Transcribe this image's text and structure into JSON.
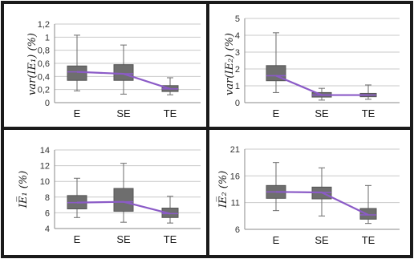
{
  "chart_data": [
    {
      "type": "box",
      "ylabel": "var(IE₁) (%)",
      "categories": [
        "E",
        "SE",
        "TE"
      ],
      "ylim": [
        0,
        1.2
      ],
      "yticks": [
        "0",
        "0,2",
        "0,4",
        "0,6",
        "0,8",
        "1",
        "1,2"
      ],
      "ytick_values": [
        0,
        0.2,
        0.4,
        0.6,
        0.8,
        1.0,
        1.2
      ],
      "boxes": [
        {
          "min": 0.18,
          "q1": 0.34,
          "median": 0.47,
          "q3": 0.56,
          "max": 1.03
        },
        {
          "min": 0.13,
          "q1": 0.34,
          "median": 0.44,
          "q3": 0.58,
          "max": 0.88
        },
        {
          "min": 0.12,
          "q1": 0.17,
          "median": 0.21,
          "q3": 0.26,
          "max": 0.38
        }
      ],
      "grid": true
    },
    {
      "type": "box",
      "ylabel": "var(IE₂) (%)",
      "categories": [
        "E",
        "SE",
        "TE"
      ],
      "ylim": [
        0,
        5
      ],
      "yticks": [
        "0",
        "1",
        "2",
        "3",
        "4",
        "5"
      ],
      "ytick_values": [
        0,
        1,
        2,
        3,
        4,
        5
      ],
      "boxes": [
        {
          "min": 0.6,
          "q1": 1.3,
          "median": 1.6,
          "q3": 2.2,
          "max": 4.15
        },
        {
          "min": 0.15,
          "q1": 0.33,
          "median": 0.45,
          "q3": 0.6,
          "max": 0.85
        },
        {
          "min": 0.2,
          "q1": 0.35,
          "median": 0.45,
          "q3": 0.55,
          "max": 1.05
        }
      ],
      "grid": true
    },
    {
      "type": "box",
      "ylabel": "IE̅₁ (%)",
      "categories": [
        "E",
        "SE",
        "TE"
      ],
      "ylim": [
        4,
        14
      ],
      "yticks": [
        "4",
        "6",
        "8",
        "10",
        "12",
        "14"
      ],
      "ytick_values": [
        4,
        6,
        8,
        10,
        12,
        14
      ],
      "boxes": [
        {
          "min": 5.4,
          "q1": 6.5,
          "median": 7.3,
          "q3": 8.2,
          "max": 10.4
        },
        {
          "min": 4.8,
          "q1": 6.2,
          "median": 7.4,
          "q3": 9.1,
          "max": 12.3
        },
        {
          "min": 4.7,
          "q1": 5.4,
          "median": 5.9,
          "q3": 6.6,
          "max": 8.1
        }
      ],
      "grid": true
    },
    {
      "type": "box",
      "ylabel": "IE̅₂ (%)",
      "categories": [
        "E",
        "SE",
        "TE"
      ],
      "ylim": [
        6,
        21
      ],
      "yticks": [
        "6",
        "11",
        "16",
        "21"
      ],
      "ytick_values": [
        6,
        11,
        16,
        21
      ],
      "boxes": [
        {
          "min": 9.5,
          "q1": 11.8,
          "median": 13.0,
          "q3": 14.2,
          "max": 18.5
        },
        {
          "min": 8.5,
          "q1": 11.7,
          "median": 12.9,
          "q3": 13.9,
          "max": 17.5
        },
        {
          "min": 7.1,
          "q1": 7.9,
          "median": 8.7,
          "q3": 9.9,
          "max": 14.2
        }
      ],
      "grid": true
    }
  ],
  "colors": {
    "box_fill": "#6e6e6e",
    "median_line": "#8b5bc7",
    "grid": "#c9c9c9",
    "border": "#1a1a1a"
  }
}
